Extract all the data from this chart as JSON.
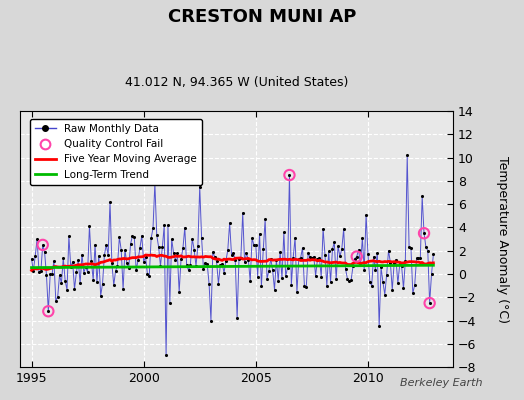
{
  "title": "CRESTON MUNI AP",
  "subtitle": "41.012 N, 94.365 W (United States)",
  "ylabel": "Temperature Anomaly (°C)",
  "watermark": "Berkeley Earth",
  "xlim": [
    1994.5,
    2013.8
  ],
  "ylim": [
    -8,
    14
  ],
  "yticks": [
    -8,
    -6,
    -4,
    -2,
    0,
    2,
    4,
    6,
    8,
    10,
    12,
    14
  ],
  "xticks": [
    1995,
    2000,
    2005,
    2010
  ],
  "bg_color": "#d8d8d8",
  "plot_bg_color": "#e8e8e8",
  "line_color": "#4444cc",
  "dot_color": "#000000",
  "ma_color": "#ff0000",
  "trend_color": "#00bb00",
  "qc_color": "#ff44aa",
  "start_year": 1995.0,
  "n_months": 216,
  "seed": 42
}
